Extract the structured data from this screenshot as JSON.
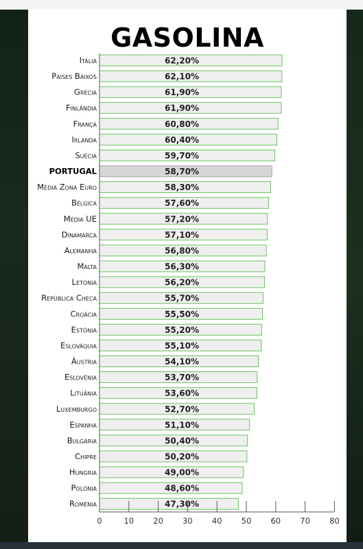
{
  "chart_data": {
    "type": "bar",
    "orientation": "horizontal",
    "title": "GASOLINA",
    "categories": [
      "Itália",
      "Países Baixos",
      "Grécia",
      "Finlândia",
      "França",
      "Irlanda",
      "Suécia",
      "PORTUGAL",
      "Média Zona Euro",
      "Bélgica",
      "Média UE",
      "Dinamarca",
      "Alemanha",
      "Malta",
      "Letónia",
      "República Checa",
      "Croácia",
      "Estónia",
      "Eslováquia",
      "Áustria",
      "Eslovénia",
      "Lituânia",
      "Luxemburgo",
      "Espanha",
      "Bulgária",
      "Chipre",
      "Hungria",
      "Polónia",
      "Roménia"
    ],
    "values": [
      62.2,
      62.1,
      61.9,
      61.9,
      60.8,
      60.4,
      59.7,
      58.7,
      58.3,
      57.6,
      57.2,
      57.1,
      56.8,
      56.3,
      56.2,
      55.7,
      55.5,
      55.2,
      55.1,
      54.1,
      53.7,
      53.6,
      52.7,
      51.1,
      50.4,
      50.2,
      49.0,
      48.6,
      47.3
    ],
    "value_labels": [
      "62,20%",
      "62,10%",
      "61,90%",
      "61,90%",
      "60,80%",
      "60,40%",
      "59,70%",
      "58,70%",
      "58,30%",
      "57,60%",
      "57,20%",
      "57,10%",
      "56,80%",
      "56,30%",
      "56,20%",
      "55,70%",
      "55,50%",
      "55,20%",
      "55,10%",
      "54,10%",
      "53,70%",
      "53,60%",
      "52,70%",
      "51,10%",
      "50,40%",
      "50,20%",
      "49,00%",
      "48,60%",
      "47,30%"
    ],
    "highlight": "PORTUGAL",
    "xlim": [
      0,
      80
    ],
    "xticks": [
      0,
      10,
      20,
      30,
      40,
      50,
      60,
      70,
      80
    ],
    "xlabel": "",
    "ylabel": "",
    "grid": false,
    "colors": {
      "bar_fill": "#efefef",
      "bar_stroke": "#6ac35e",
      "highlight_fill": "#d6d6d6",
      "highlight_stroke": "#a8a8a8",
      "axis": "#555555"
    }
  }
}
